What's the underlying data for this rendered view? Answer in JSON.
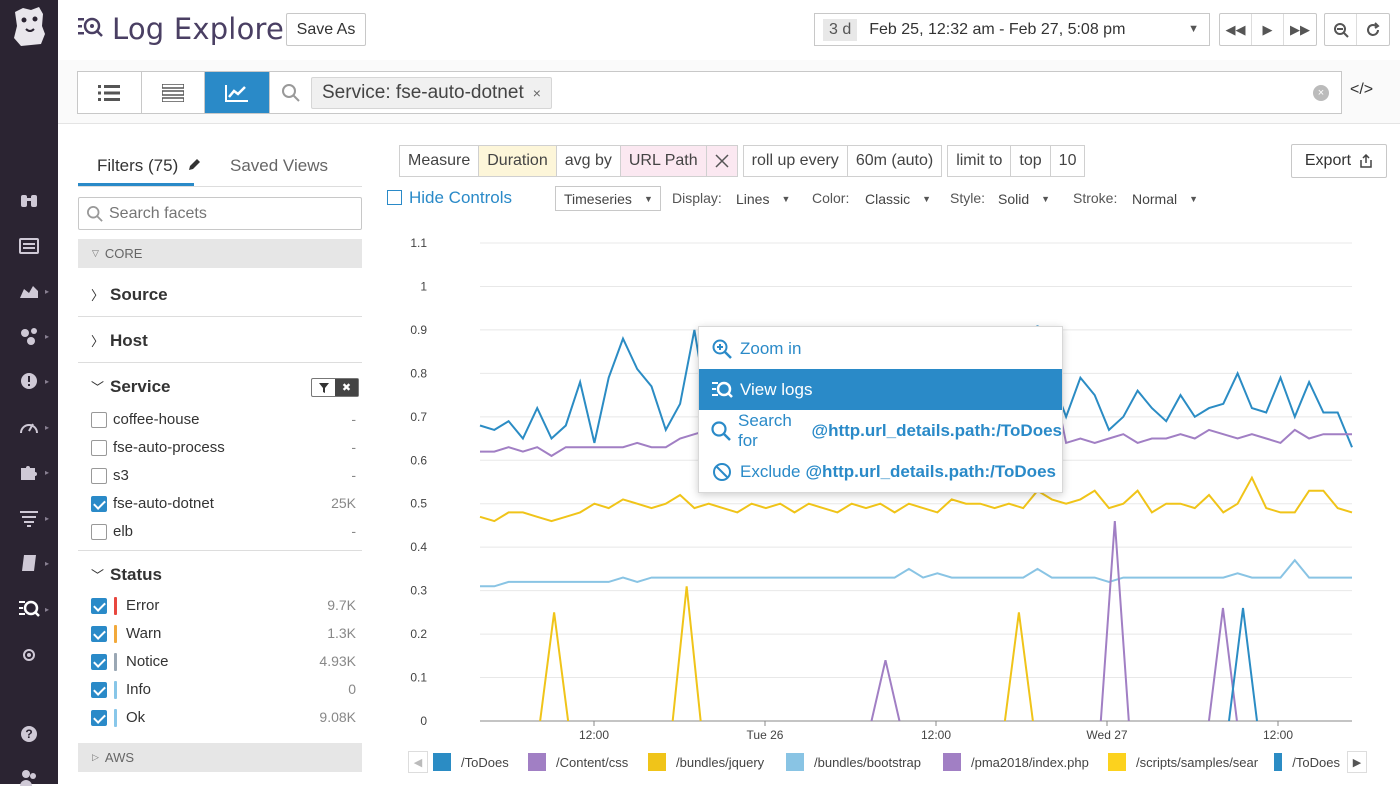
{
  "header": {
    "title": "Log Explorer",
    "save_as": "Save As",
    "time_badge": "3 d",
    "time_range": "Feb 25, 12:32 am - Feb 27, 5:08 pm"
  },
  "query": {
    "pill": "Service: fse-auto-dotnet",
    "pill_close": "×",
    "code_toggle": "</>"
  },
  "sidebar": {
    "tab_filters": "Filters (75)",
    "tab_saved": "Saved Views",
    "search_placeholder": "Search facets",
    "group_core": "CORE",
    "group_aws": "AWS",
    "facet_source": "Source",
    "facet_host": "Host",
    "facet_service": "Service",
    "facet_status": "Status",
    "service_items": [
      {
        "label": "coffee-house",
        "count": "-",
        "checked": false
      },
      {
        "label": "fse-auto-process",
        "count": "-",
        "checked": false
      },
      {
        "label": "s3",
        "count": "-",
        "checked": false
      },
      {
        "label": "fse-auto-dotnet",
        "count": "25K",
        "checked": true
      },
      {
        "label": "elb",
        "count": "-",
        "checked": false
      }
    ],
    "status_items": [
      {
        "label": "Error",
        "count": "9.7K",
        "color": "#e8473f"
      },
      {
        "label": "Warn",
        "count": "1.3K",
        "color": "#f2a93b"
      },
      {
        "label": "Notice",
        "count": "4.93K",
        "color": "#9aa7b4"
      },
      {
        "label": "Info",
        "count": "0",
        "color": "#87c6e8"
      },
      {
        "label": "Ok",
        "count": "9.08K",
        "color": "#88c7ea"
      }
    ]
  },
  "controls": {
    "measure": "Measure",
    "duration": "Duration",
    "avg_by": "avg by",
    "url_path": "URL Path",
    "roll_up": "roll up every",
    "interval": "60m (auto)",
    "limit_to": "limit to",
    "top": "top",
    "limit": "10",
    "export": "Export",
    "hide_controls": "Hide Controls",
    "viz": "Timeseries",
    "display_label": "Display:",
    "display": "Lines",
    "color_label": "Color:",
    "color": "Classic",
    "style_label": "Style:",
    "style": "Solid",
    "stroke_label": "Stroke:",
    "stroke": "Normal"
  },
  "context_menu": {
    "zoom": "Zoom in",
    "view_logs": "View logs",
    "search_for": "Search for",
    "exclude": "Exclude",
    "attribute": "@http.url_details.path:/ToDoes"
  },
  "chart_data": {
    "type": "line",
    "ylim": [
      0,
      1.1
    ],
    "yticks": [
      "0",
      "0.1",
      "0.2",
      "0.3",
      "0.4",
      "0.5",
      "0.6",
      "0.7",
      "0.8",
      "0.9",
      "1",
      "1.1"
    ],
    "xticks": [
      "12:00",
      "Tue 26",
      "12:00",
      "Wed 27",
      "12:00"
    ],
    "series": [
      {
        "name": "/ToDoes",
        "color": "#2b8cc4",
        "values": [
          0.68,
          0.67,
          0.69,
          0.65,
          0.72,
          0.65,
          0.68,
          0.78,
          0.64,
          0.79,
          0.88,
          0.81,
          0.77,
          0.67,
          0.73,
          0.9,
          0.7,
          0.71,
          0.72,
          0.7,
          0.71,
          0.72,
          0.7,
          0.71,
          0.7,
          0.71,
          0.69,
          0.73,
          0.72,
          0.7,
          0.71,
          0.72,
          0.74,
          0.72,
          0.73,
          0.71,
          0.72,
          0.7,
          0.73,
          0.91,
          0.79,
          0.7,
          0.79,
          0.75,
          0.67,
          0.7,
          0.76,
          0.72,
          0.69,
          0.75,
          0.7,
          0.72,
          0.73,
          0.8,
          0.72,
          0.71,
          0.79,
          0.7,
          0.78,
          0.71,
          0.71,
          0.63
        ]
      },
      {
        "name": "/Content/css",
        "color": "#a17fc4",
        "values": [
          0.62,
          0.62,
          0.63,
          0.62,
          0.63,
          0.61,
          0.63,
          0.63,
          0.63,
          0.63,
          0.63,
          0.64,
          0.63,
          0.63,
          0.65,
          0.66,
          0.67,
          0.65,
          0.65,
          0.64,
          0.66,
          0.65,
          0.66,
          0.65,
          0.66,
          0.65,
          0.66,
          0.65,
          0.66,
          0.66,
          0.65,
          0.66,
          0.65,
          0.66,
          0.65,
          0.66,
          0.65,
          0.66,
          0.66,
          0.66,
          0.8,
          0.64,
          0.65,
          0.64,
          0.65,
          0.66,
          0.64,
          0.65,
          0.65,
          0.66,
          0.65,
          0.67,
          0.66,
          0.65,
          0.66,
          0.65,
          0.64,
          0.67,
          0.65,
          0.66,
          0.66,
          0.66
        ]
      },
      {
        "name": "/bundles/jquery",
        "color": "#f0c419",
        "values": [
          0.47,
          0.46,
          0.48,
          0.48,
          0.47,
          0.46,
          0.47,
          0.48,
          0.5,
          0.49,
          0.51,
          0.5,
          0.49,
          0.5,
          0.52,
          0.49,
          0.5,
          0.49,
          0.48,
          0.5,
          0.49,
          0.5,
          0.48,
          0.5,
          0.49,
          0.48,
          0.5,
          0.49,
          0.5,
          0.48,
          0.5,
          0.49,
          0.48,
          0.51,
          0.5,
          0.5,
          0.49,
          0.5,
          0.49,
          0.53,
          0.51,
          0.5,
          0.51,
          0.53,
          0.49,
          0.5,
          0.53,
          0.48,
          0.5,
          0.5,
          0.49,
          0.52,
          0.48,
          0.5,
          0.56,
          0.49,
          0.48,
          0.48,
          0.53,
          0.53,
          0.49,
          0.48
        ]
      },
      {
        "name": "/bundles/bootstrap",
        "color": "#89c4e4",
        "values": [
          0.31,
          0.31,
          0.32,
          0.32,
          0.32,
          0.32,
          0.32,
          0.32,
          0.32,
          0.32,
          0.33,
          0.32,
          0.33,
          0.33,
          0.33,
          0.33,
          0.33,
          0.33,
          0.33,
          0.33,
          0.33,
          0.33,
          0.33,
          0.33,
          0.33,
          0.33,
          0.33,
          0.33,
          0.33,
          0.33,
          0.35,
          0.33,
          0.34,
          0.33,
          0.33,
          0.33,
          0.33,
          0.33,
          0.33,
          0.35,
          0.33,
          0.33,
          0.33,
          0.33,
          0.32,
          0.33,
          0.33,
          0.33,
          0.33,
          0.33,
          0.33,
          0.33,
          0.33,
          0.34,
          0.33,
          0.33,
          0.33,
          0.37,
          0.33,
          0.33,
          0.33,
          0.33
        ]
      },
      {
        "name": "/pma2018/index.php",
        "color": "#a17fc4",
        "spikes": [
          [
            0.465,
            0.14
          ],
          [
            0.728,
            0.46
          ],
          [
            0.852,
            0.26
          ]
        ]
      },
      {
        "name": "/scripts/samples/sear",
        "color": "#f0c419",
        "spikes": [
          [
            0.085,
            0.25
          ],
          [
            0.237,
            0.31
          ],
          [
            0.618,
            0.25
          ]
        ]
      },
      {
        "name": "/ToDoes",
        "color": "#2b8cc4",
        "spikes": [
          [
            0.875,
            0.26
          ]
        ]
      }
    ]
  },
  "legend": [
    {
      "label": "/ToDoes",
      "color": "#2b8cc4"
    },
    {
      "label": "/Content/css",
      "color": "#a17fc4"
    },
    {
      "label": "/bundles/jquery",
      "color": "#f0c419"
    },
    {
      "label": "/bundles/bootstrap",
      "color": "#89c4e4"
    },
    {
      "label": "/pma2018/index.php",
      "color": "#a17fc4"
    },
    {
      "label": "/scripts/samples/sear",
      "color": "#fcd21e"
    },
    {
      "label": "/ToDoes",
      "color": "#2b8cc4"
    }
  ]
}
